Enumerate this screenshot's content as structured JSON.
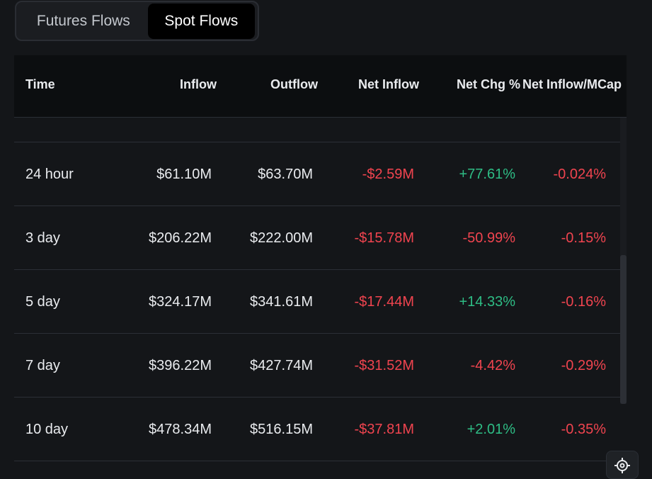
{
  "tabs": {
    "futures_label": "Futures Flows",
    "spot_label": "Spot Flows",
    "active": "Spot Flows"
  },
  "table": {
    "headers": {
      "time": "Time",
      "inflow": "Inflow",
      "outflow": "Outflow",
      "net_inflow": "Net Inflow",
      "net_chg": "Net Chg %",
      "net_inflow_mcap": "Net Inflow/MCap"
    },
    "rows": [
      {
        "time": "24 hour",
        "inflow": "$61.10M",
        "outflow": "$63.70M",
        "net_inflow": "-$2.59M",
        "net_chg": "+77.61%",
        "net_inflow_mcap": "-0.024%"
      },
      {
        "time": "3 day",
        "inflow": "$206.22M",
        "outflow": "$222.00M",
        "net_inflow": "-$15.78M",
        "net_chg": "-50.99%",
        "net_inflow_mcap": "-0.15%"
      },
      {
        "time": "5 day",
        "inflow": "$324.17M",
        "outflow": "$341.61M",
        "net_inflow": "-$17.44M",
        "net_chg": "+14.33%",
        "net_inflow_mcap": "-0.16%"
      },
      {
        "time": "7 day",
        "inflow": "$396.22M",
        "outflow": "$427.74M",
        "net_inflow": "-$31.52M",
        "net_chg": "-4.42%",
        "net_inflow_mcap": "-0.29%"
      },
      {
        "time": "10 day",
        "inflow": "$478.34M",
        "outflow": "$516.15M",
        "net_inflow": "-$37.81M",
        "net_chg": "+2.01%",
        "net_inflow_mcap": "-0.35%"
      }
    ]
  },
  "colors": {
    "negative": "#f0444f",
    "positive": "#2ebd85",
    "background": "#141619",
    "header_background": "#0c0e10"
  },
  "icons": {
    "settings": "gear-icon"
  }
}
